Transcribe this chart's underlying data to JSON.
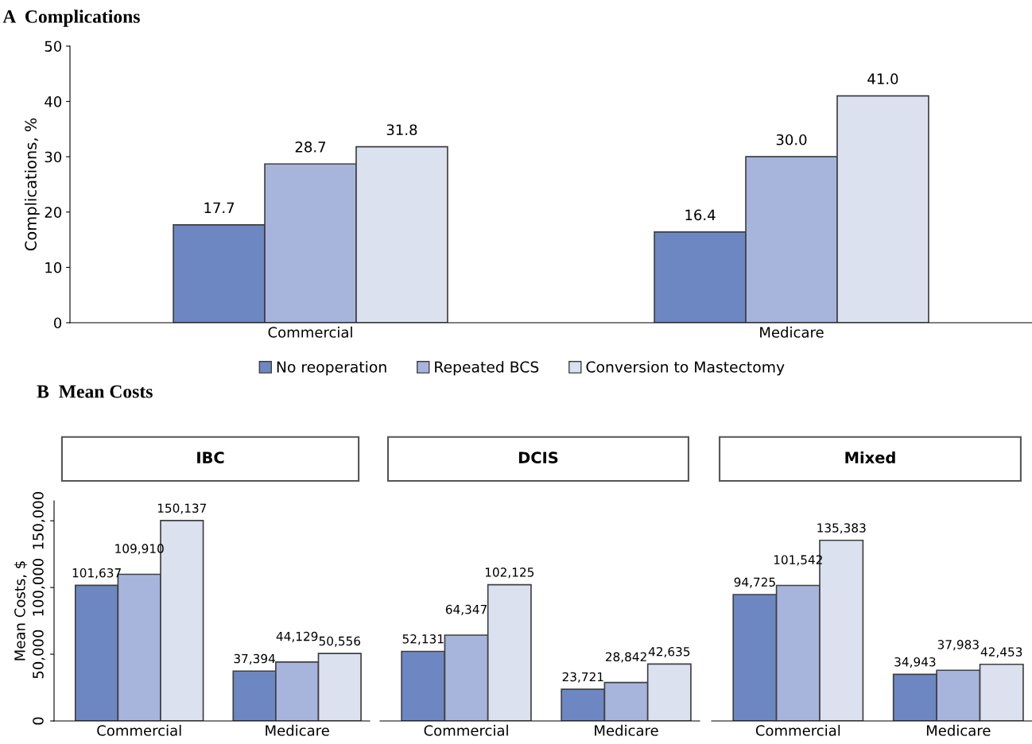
{
  "chart_data": [
    {
      "type": "bar",
      "title": "A  Complications",
      "ylabel": "Complications, %",
      "categories": [
        "Commercial",
        "Medicare"
      ],
      "ylim": [
        0,
        50
      ],
      "yticks": [
        0,
        10,
        20,
        30,
        40,
        50
      ],
      "legend": "bottom",
      "series": [
        {
          "name": "No reoperation",
          "color": "#6d87c3",
          "values": [
            17.7,
            16.4
          ],
          "value_labels": [
            "17.7",
            "16.4"
          ]
        },
        {
          "name": "Repeated BCS",
          "color": "#a7b5dc",
          "values": [
            28.7,
            30.0
          ],
          "value_labels": [
            "28.7",
            "30.0"
          ]
        },
        {
          "name": "Conversion to Mastectomy",
          "color": "#dce1f0",
          "values": [
            31.8,
            41.0
          ],
          "value_labels": [
            "31.8",
            "41.0"
          ]
        }
      ]
    },
    {
      "type": "bar",
      "title": "B  Mean Costs",
      "subtitle": "IBC",
      "ylabel": "Mean Costs, $",
      "categories": [
        "Commercial",
        "Medicare"
      ],
      "ylim": [
        0,
        165000
      ],
      "yticks": [
        {
          "value": 0,
          "label": "0"
        },
        {
          "value": 50000,
          "label": "50,000"
        },
        {
          "value": 100000,
          "label": "100,000"
        },
        {
          "value": 150000,
          "label": "150,000"
        }
      ],
      "series": [
        {
          "color": "#6d87c3",
          "values": [
            101637,
            37394
          ],
          "value_labels": [
            "101,637",
            "37,394"
          ]
        },
        {
          "color": "#a7b5dc",
          "values": [
            109910,
            44129
          ],
          "value_labels": [
            "109,910",
            "44,129"
          ]
        },
        {
          "color": "#dce1f0",
          "values": [
            150137,
            50556
          ],
          "value_labels": [
            "150,137",
            "50,556"
          ]
        }
      ]
    },
    {
      "type": "bar",
      "subtitle": "DCIS",
      "categories": [
        "Commercial",
        "Medicare"
      ],
      "tick_labels": "x",
      "series": [
        {
          "color": "#6d87c3",
          "values": [
            52131,
            23721
          ],
          "value_labels": [
            "52,131",
            "23,721"
          ]
        },
        {
          "color": "#a7b5dc",
          "values": [
            64347,
            28842
          ],
          "value_labels": [
            "64,347",
            "28,842"
          ]
        },
        {
          "color": "#dce1f0",
          "values": [
            102125,
            42635
          ],
          "value_labels": [
            "102,125",
            "42,635"
          ]
        }
      ]
    },
    {
      "type": "bar",
      "subtitle": "Mixed",
      "categories": [
        "Commercial",
        "Medicare"
      ],
      "tick_labels": "x",
      "series": [
        {
          "color": "#6d87c3",
          "values": [
            94725,
            34943
          ],
          "value_labels": [
            "94,725",
            "34,943"
          ]
        },
        {
          "color": "#a7b5dc",
          "values": [
            101542,
            37983
          ],
          "value_labels": [
            "101,542",
            "37,983"
          ]
        },
        {
          "color": "#dce1f0",
          "values": [
            135383,
            42453
          ],
          "value_labels": [
            "135,383",
            "42,453"
          ]
        }
      ]
    }
  ]
}
